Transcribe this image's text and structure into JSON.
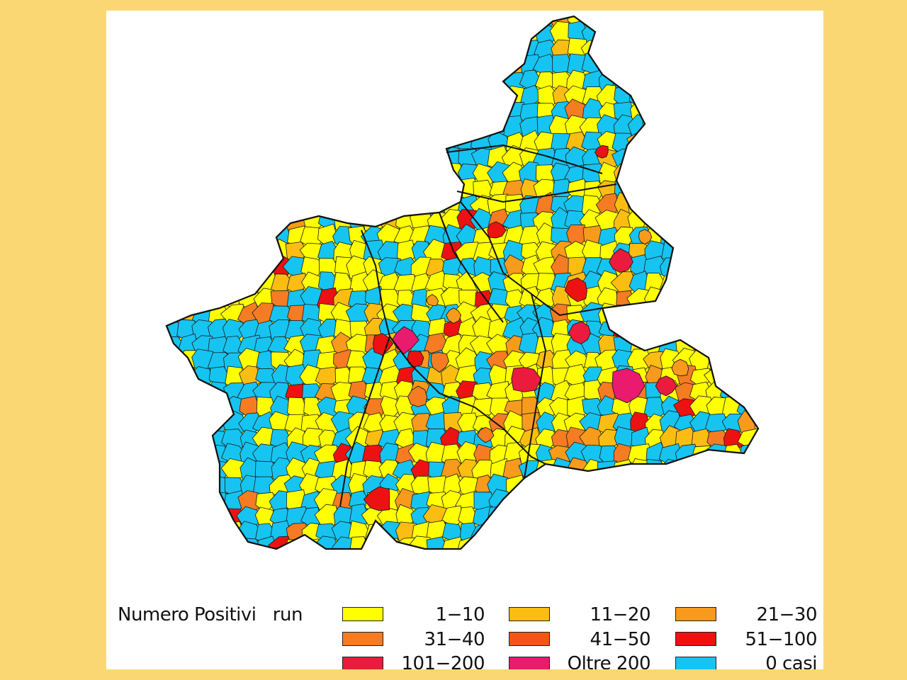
{
  "map": {
    "region_fill_default": "#ffff00",
    "border_color": "#1a1a1a"
  },
  "legend": {
    "title": "Numero Positivi   run",
    "classes": [
      {
        "label": "1−10",
        "color": "#ffff00"
      },
      {
        "label": "11−20",
        "color": "#fcbd12"
      },
      {
        "label": "21−30",
        "color": "#f89a1b"
      },
      {
        "label": "31−40",
        "color": "#f57c22"
      },
      {
        "label": "41−50",
        "color": "#f25617"
      },
      {
        "label": "51−100",
        "color": "#ee1111"
      },
      {
        "label": "101−200",
        "color": "#ea1b3d"
      },
      {
        "label": "Oltre 200",
        "color": "#ea1a6e"
      },
      {
        "label": "0 casi",
        "color": "#16c4f1"
      }
    ]
  }
}
